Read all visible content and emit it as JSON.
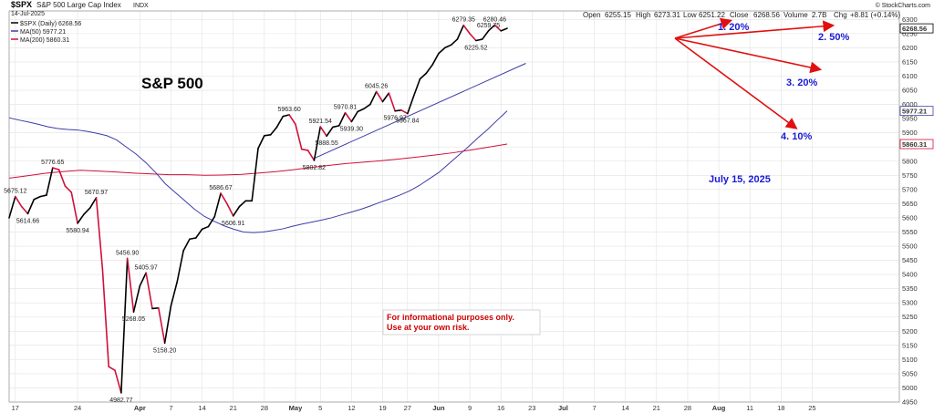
{
  "header": {
    "symbol": "$SPX",
    "name": "S&P 500 Large Cap Index",
    "exchange": "INDX",
    "date": "14-Jul-2025",
    "ohlc": {
      "open_label": "Open",
      "open": "6255.15",
      "high_label": "High",
      "high": "6273.31",
      "low_label": "Low",
      "low": "6251.22",
      "close_label": "Close",
      "close": "6268.56",
      "volume_label": "Volume",
      "volume": "2.7B",
      "chg_label": "Chg",
      "chg": "+8.81 (+0.14%)"
    },
    "watermark": "© StockCharts.com"
  },
  "legend": [
    {
      "label": "$SPX (Daily) 6268.56",
      "color": "#000000"
    },
    {
      "label": "MA(50) 5977.21",
      "color": "#3c3ca8"
    },
    {
      "label": "MA(200) 5860.31",
      "color": "#d0103a"
    }
  ],
  "annotations": {
    "title": "S&P 500",
    "date_note": "July 15, 2025",
    "disclaimer_line1": "For informational purposes only.",
    "disclaimer_line2": "Use at your own risk.",
    "targets": [
      {
        "label": "1. 20%"
      },
      {
        "label": "2. 50%"
      },
      {
        "label": "3. 20%"
      },
      {
        "label": "4. 10%"
      }
    ]
  },
  "colors": {
    "price_up": "#000000",
    "price_down": "#d0103a",
    "ma50": "#3c3ca8",
    "ma200": "#d0103a",
    "trendline": "#3c3ca8",
    "arrows": "#e01010",
    "target_text": "#1a1ad6",
    "disclaimer_text": "#cc0000",
    "disclaimer_bg": "#ffffff",
    "grid": "#e2e2e2"
  },
  "chart_data": {
    "type": "line",
    "title": "S&P 500",
    "ylim": [
      4950,
      6330
    ],
    "y_scale": "linear",
    "y_ticks": [
      4950,
      5000,
      5050,
      5100,
      5150,
      5200,
      5250,
      5300,
      5350,
      5400,
      5450,
      5500,
      5550,
      5600,
      5650,
      5700,
      5750,
      5800,
      5850,
      5900,
      5950,
      6000,
      6050,
      6100,
      6150,
      6200,
      6250,
      6300
    ],
    "y_tag_values": [
      {
        "value": 6268.56,
        "label": "6268.56",
        "color": "#000000"
      },
      {
        "value": 5977.21,
        "label": "5977.21",
        "color": "#3c3ca8"
      },
      {
        "value": 5860.31,
        "label": "5860.31",
        "color": "#d0103a"
      }
    ],
    "x_tick_labels": [
      "17",
      "24",
      "Apr",
      "7",
      "14",
      "21",
      "28",
      "May",
      "5",
      "12",
      "19",
      "27",
      "Jun",
      "9",
      "16",
      "23",
      "Jul",
      "7",
      "14",
      "21",
      "28",
      "Aug",
      "11",
      "18",
      "25"
    ],
    "x_tick_bold": [
      "Apr",
      "May",
      "Jun",
      "Jul",
      "Aug"
    ],
    "x_range": [
      0,
      143
    ],
    "x_tick_index": [
      1,
      11,
      21,
      26,
      31,
      36,
      41,
      46,
      50,
      55,
      60,
      64,
      69,
      74,
      79,
      84,
      89,
      94,
      99,
      104,
      109,
      114,
      119,
      124,
      129
    ],
    "grid": true,
    "series": [
      {
        "name": "$SPX (Daily)",
        "values": [
          5600,
          5675.12,
          5640,
          5614.66,
          5665,
          5675,
          5680,
          5776.65,
          5770,
          5712,
          5690,
          5580.94,
          5612,
          5635,
          5670.97,
          5420,
          5075,
          5062,
          4982.77,
          5456.9,
          5268.05,
          5360,
          5405.97,
          5280,
          5282,
          5158.2,
          5290,
          5375,
          5484,
          5525,
          5529,
          5560,
          5569,
          5604,
          5686.67,
          5650,
          5606.91,
          5640,
          5660,
          5660,
          5845,
          5890,
          5893,
          5920,
          5958,
          5963.6,
          5930,
          5842,
          5838,
          5802.82,
          5921.54,
          5888.55,
          5920,
          5925,
          5970.81,
          5939.3,
          5975,
          5985,
          6000,
          6045.26,
          6010,
          6040,
          5976.97,
          5980,
          5967.84,
          6030,
          6090,
          6110,
          6140,
          6180,
          6200,
          6210,
          6230,
          6279.35,
          6250,
          6225.52,
          6230,
          6259.75,
          6280.46,
          6259.75,
          6268.56
        ]
      },
      {
        "name": "MA(50)",
        "values": [
          5953,
          5945,
          5938,
          5930,
          5921,
          5915,
          5912,
          5910,
          5905,
          5898,
          5890,
          5875,
          5850,
          5825,
          5795,
          5760,
          5720,
          5690,
          5660,
          5630,
          5605,
          5588,
          5572,
          5560,
          5550,
          5548,
          5550,
          5555,
          5561,
          5570,
          5578,
          5585,
          5592,
          5600,
          5610,
          5620,
          5630,
          5642,
          5655,
          5667,
          5680,
          5695,
          5714,
          5737,
          5760,
          5790,
          5820,
          5850,
          5882,
          5912,
          5945,
          5977.21
        ]
      },
      {
        "name": "MA(200)",
        "values": [
          5740,
          5748,
          5757,
          5763,
          5768,
          5765,
          5762,
          5758,
          5755,
          5752,
          5752,
          5750,
          5751,
          5753,
          5758,
          5763,
          5770,
          5778,
          5785,
          5792,
          5797,
          5802,
          5808,
          5815,
          5822,
          5830,
          5840,
          5850,
          5860.31
        ]
      },
      {
        "name": "Trendline",
        "values": [
          5810,
          6145
        ]
      }
    ],
    "data_labels": [
      "5675.12",
      "5614.66",
      "5776.65",
      "5580.94",
      "5670.97",
      "4982.77",
      "5456.90",
      "5268.05",
      "5405.97",
      "5158.20",
      "5686.67",
      "5606.91",
      "5963.60",
      "5802.82",
      "5921.54",
      "5888.55",
      "5970.81",
      "5939.30",
      "6045.26",
      "5976.97",
      "5967.84",
      "6279.35",
      "6225.52",
      "6280.46",
      "6259.75"
    ],
    "data_label_values": [
      5675.12,
      5614.66,
      5776.65,
      5580.94,
      5670.97,
      4982.77,
      5456.9,
      5268.05,
      5405.97,
      5158.2,
      5686.67,
      5606.91,
      5963.6,
      5802.82,
      5921.54,
      5888.55,
      5970.81,
      5939.3,
      6045.26,
      5976.97,
      5967.84,
      6279.35,
      6225.52,
      6280.46,
      6259.75
    ]
  }
}
